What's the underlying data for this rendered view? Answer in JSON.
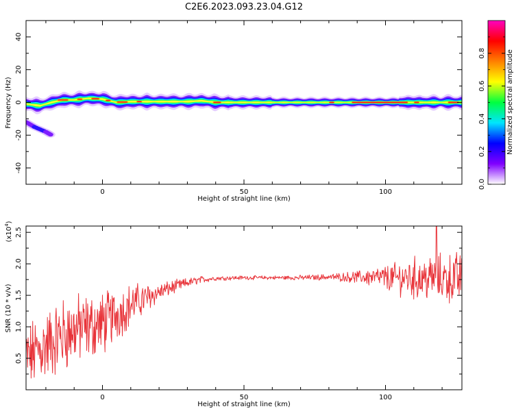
{
  "title": "C2E6.2023.093.23.04.G12",
  "chart_data": [
    {
      "type": "heatmap",
      "xlabel": "Height of straight line (km)",
      "ylabel": "Frequency (Hz)",
      "xlim": [
        -27,
        127
      ],
      "ylim": [
        -50,
        50
      ],
      "x_ticks": [
        0,
        50,
        100
      ],
      "y_ticks": [
        -40,
        -20,
        0,
        20,
        40
      ],
      "colorbar": {
        "label": "Normalized spectral amplitude",
        "range": [
          0,
          1
        ],
        "ticks": [
          "0.0",
          "0.2",
          "0.4",
          "0.6",
          "0.8"
        ],
        "colors": [
          "#ffffff",
          "#8000ff",
          "#0000ff",
          "#00e5ff",
          "#00ff40",
          "#ffff00",
          "#ff8000",
          "#ff0000",
          "#ff00c0"
        ]
      },
      "main_band": {
        "frequency_hz": 0,
        "x_range": [
          -27,
          127
        ],
        "centroid_hz": [
          [
            -27,
            -1
          ],
          [
            -22,
            -2
          ],
          [
            -18,
            0
          ],
          [
            -14,
            1.5
          ],
          [
            -10,
            1.5
          ],
          [
            -5,
            2.5
          ],
          [
            0,
            2
          ],
          [
            5,
            0
          ],
          [
            10,
            0.5
          ],
          [
            15,
            0.5
          ],
          [
            20,
            0.5
          ],
          [
            25,
            0.5
          ],
          [
            30,
            0.5
          ],
          [
            35,
            1
          ],
          [
            40,
            0
          ],
          [
            50,
            0
          ],
          [
            127,
            0
          ]
        ]
      },
      "secondary_feature": {
        "points": [
          [
            -27,
            -12
          ],
          [
            -24,
            -15
          ],
          [
            -20,
            -18
          ],
          [
            -18,
            -20
          ]
        ]
      }
    },
    {
      "type": "line",
      "xlabel": "Height of straight line (km)",
      "ylabel": "SNR (10 * v/v)",
      "y_multiplier_label": "(x10",
      "y_multiplier_exp": "4",
      "y_multiplier_close": ")",
      "xlim": [
        -27,
        127
      ],
      "ylim": [
        0,
        2.6
      ],
      "x_ticks": [
        0,
        50,
        100
      ],
      "y_ticks": [
        "0.5",
        "1.0",
        "1.5",
        "2.0",
        "2.5"
      ],
      "color": "#e8343a",
      "x_range": [
        -27,
        127
      ],
      "trend": [
        [
          -27,
          0.5
        ],
        [
          -20,
          0.7
        ],
        [
          -15,
          0.85
        ],
        [
          -10,
          0.95
        ],
        [
          -5,
          1.0
        ],
        [
          0,
          1.05
        ],
        [
          5,
          1.2
        ],
        [
          10,
          1.35
        ],
        [
          15,
          1.45
        ],
        [
          20,
          1.55
        ],
        [
          25,
          1.63
        ],
        [
          30,
          1.7
        ],
        [
          35,
          1.75
        ],
        [
          40,
          1.77
        ],
        [
          50,
          1.78
        ],
        [
          60,
          1.78
        ],
        [
          70,
          1.78
        ],
        [
          80,
          1.79
        ],
        [
          90,
          1.79
        ],
        [
          100,
          1.78
        ],
        [
          110,
          1.77
        ],
        [
          120,
          1.77
        ],
        [
          127,
          1.77
        ]
      ],
      "spread": [
        [
          -27,
          0.45
        ],
        [
          -15,
          0.5
        ],
        [
          0,
          0.42
        ],
        [
          10,
          0.28
        ],
        [
          20,
          0.12
        ],
        [
          30,
          0.06
        ],
        [
          40,
          0.03
        ],
        [
          60,
          0.025
        ],
        [
          80,
          0.04
        ],
        [
          90,
          0.08
        ],
        [
          100,
          0.16
        ],
        [
          110,
          0.28
        ],
        [
          127,
          0.35
        ]
      ],
      "peak": [
        118,
        2.6
      ]
    }
  ]
}
